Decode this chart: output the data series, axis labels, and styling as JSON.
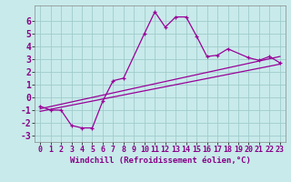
{
  "background_color": "#c8eaea",
  "grid_color": "#a0cccc",
  "line_color": "#990099",
  "marker_color": "#990099",
  "xlabel": "Windchill (Refroidissement éolien,°C)",
  "xlim": [
    -0.5,
    23.5
  ],
  "ylim": [
    -3.5,
    7.2
  ],
  "yticks": [
    -3,
    -2,
    -1,
    0,
    1,
    2,
    3,
    4,
    5,
    6
  ],
  "xticks": [
    0,
    1,
    2,
    3,
    4,
    5,
    6,
    7,
    8,
    9,
    10,
    11,
    12,
    13,
    14,
    15,
    16,
    17,
    18,
    19,
    20,
    21,
    22,
    23
  ],
  "curve_x": [
    0,
    1,
    2,
    3,
    4,
    5,
    6,
    7,
    8,
    10,
    11,
    12,
    13,
    14,
    15,
    16,
    17,
    18,
    20,
    21,
    22,
    23
  ],
  "curve_y": [
    -0.7,
    -1.0,
    -1.0,
    -2.2,
    -2.4,
    -2.4,
    -0.3,
    1.3,
    1.5,
    5.0,
    6.7,
    5.5,
    6.3,
    6.3,
    4.8,
    3.2,
    3.3,
    3.8,
    3.1,
    2.9,
    3.2,
    2.7
  ],
  "line2_x": [
    0,
    23
  ],
  "line2_y": [
    -0.9,
    3.2
  ],
  "line3_x": [
    0,
    23
  ],
  "line3_y": [
    -1.1,
    2.6
  ],
  "font_size_xlabel": 6.5,
  "font_size_yticks": 7,
  "font_size_xticks": 6
}
